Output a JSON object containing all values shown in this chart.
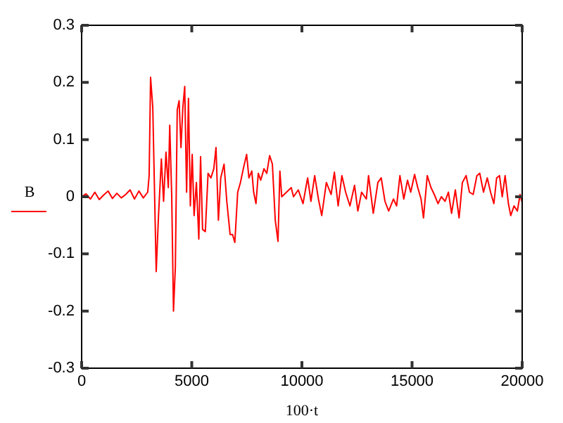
{
  "chart_data": {
    "type": "line",
    "xlabel": "100·t",
    "ylabel": "B",
    "xlim": [
      0,
      20000
    ],
    "ylim": [
      -0.3,
      0.3
    ],
    "xticks": [
      0,
      5000,
      10000,
      15000,
      20000
    ],
    "yticks": [
      -0.3,
      -0.2,
      -0.1,
      0,
      0.1,
      0.2,
      0.3
    ],
    "grid": false,
    "legend": false,
    "marker": "none",
    "line_style": "solid",
    "series": [
      {
        "color": "#ff0000",
        "x": [
          0,
          200,
          400,
          600,
          800,
          1000,
          1200,
          1400,
          1600,
          1800,
          2000,
          2200,
          2400,
          2600,
          2800,
          3000,
          3065,
          3130,
          3230,
          3385,
          3490,
          3620,
          3720,
          3830,
          3935,
          4000,
          4090,
          4170,
          4255,
          4340,
          4425,
          4510,
          4595,
          4680,
          4765,
          4850,
          4935,
          5020,
          5105,
          5210,
          5320,
          5400,
          5490,
          5615,
          5740,
          5870,
          6000,
          6100,
          6210,
          6315,
          6465,
          6590,
          6740,
          6850,
          6955,
          7085,
          7210,
          7340,
          7490,
          7595,
          7725,
          7810,
          7915,
          8020,
          8130,
          8280,
          8405,
          8535,
          8660,
          8790,
          8915,
          9000,
          9085,
          9300,
          9515,
          9620,
          9835,
          10050,
          10260,
          10410,
          10580,
          10750,
          10900,
          11110,
          11325,
          11475,
          11645,
          11815,
          11985,
          12180,
          12390,
          12540,
          12710,
          12925,
          13025,
          13240,
          13450,
          13600,
          13770,
          13940,
          14155,
          14300,
          14450,
          14625,
          14795,
          14940,
          15115,
          15260,
          15410,
          15520,
          15690,
          15860,
          16010,
          16180,
          16330,
          16500,
          16650,
          16795,
          16965,
          17135,
          17285,
          17455,
          17605,
          17775,
          17945,
          18075,
          18245,
          18415,
          18565,
          18715,
          18840,
          18970,
          19095,
          19225,
          19375,
          19480,
          19630,
          19780,
          19905,
          20000
        ],
        "values": [
          0,
          0.005,
          -0.004,
          0.008,
          -0.005,
          0.003,
          0.01,
          -0.003,
          0.006,
          -0.002,
          0.004,
          0.012,
          -0.004,
          0.01,
          -0.002,
          0.008,
          0.037,
          0.209,
          0.156,
          -0.131,
          -0.033,
          0.066,
          -0.008,
          0.078,
          0.016,
          0.125,
          0,
          -0.2,
          -0.123,
          0.152,
          0.168,
          0.086,
          0.156,
          0.193,
          0.008,
          0.172,
          -0.016,
          0.074,
          -0.033,
          0.025,
          -0.074,
          0.07,
          -0.057,
          -0.061,
          0.041,
          0.033,
          0.049,
          0.086,
          -0.041,
          0.033,
          0.057,
          -0.008,
          -0.066,
          -0.066,
          -0.08,
          0.008,
          0.025,
          0.049,
          0.074,
          0.033,
          0.045,
          0.008,
          -0.012,
          0.041,
          0.029,
          0.049,
          0.041,
          0.072,
          0.057,
          -0.041,
          -0.078,
          0.045,
          0,
          0.008,
          0.016,
          0,
          0.012,
          -0.012,
          0.033,
          -0.008,
          0.037,
          -0.004,
          -0.033,
          0.025,
          0.004,
          0.043,
          -0.016,
          0.037,
          0.008,
          -0.016,
          0.02,
          -0.025,
          0.008,
          -0.004,
          0.037,
          -0.029,
          0.025,
          0.033,
          -0.008,
          -0.025,
          -0.004,
          -0.016,
          0.037,
          -0.004,
          0.029,
          0.008,
          0.039,
          0.016,
          -0.004,
          -0.037,
          0.037,
          0.016,
          0.004,
          -0.012,
          0,
          -0.008,
          0.008,
          -0.029,
          0.012,
          -0.037,
          0.025,
          0.037,
          0.008,
          0.004,
          0.037,
          0.041,
          0.008,
          0.033,
          0.008,
          -0.012,
          0.033,
          0.037,
          0,
          0.037,
          -0.012,
          -0.033,
          -0.016,
          -0.025,
          0.004,
          -0.01
        ]
      }
    ]
  }
}
